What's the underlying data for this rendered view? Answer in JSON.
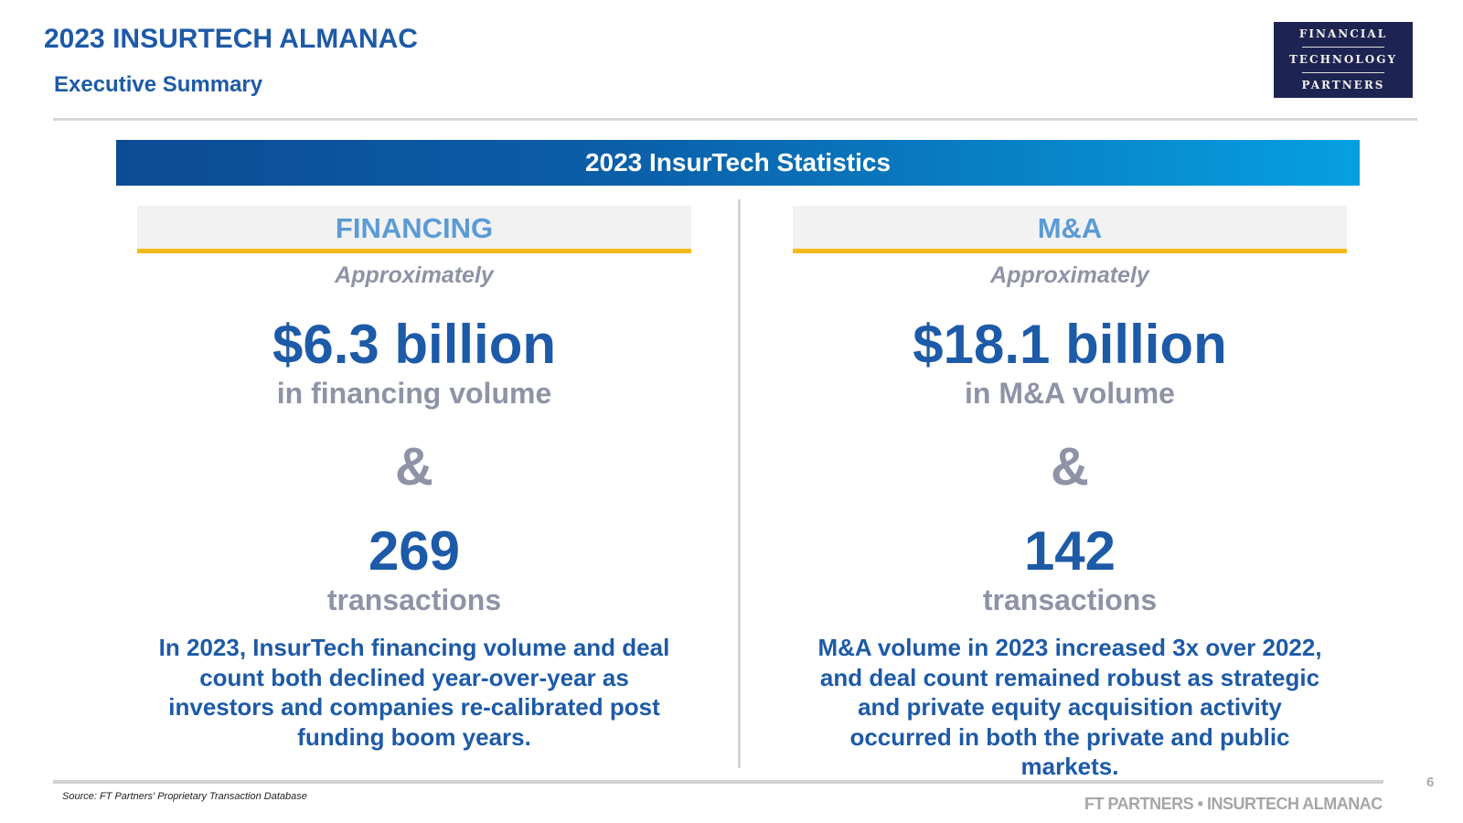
{
  "header": {
    "title": "2023 INSURTECH ALMANAC",
    "subtitle": "Executive Summary",
    "logo": [
      "FINANCIAL",
      "TECHNOLOGY",
      "PARTNERS"
    ]
  },
  "banner": "2023 InsurTech Statistics",
  "financing": {
    "heading": "FINANCING",
    "approx": "Approximately",
    "volume": "$6.3 billion",
    "volume_label": "in financing volume",
    "amp": "&",
    "count": "269",
    "count_label": "transactions",
    "description": "In 2023, InsurTech financing volume and deal count both declined year-over-year as investors and companies re-calibrated post funding boom years."
  },
  "ma": {
    "heading": "M&A",
    "approx": "Approximately",
    "volume": "$18.1 billion",
    "volume_label": "in M&A volume",
    "amp": "&",
    "count": "142",
    "count_label": "transactions",
    "description": "M&A volume in 2023 increased 3x over 2022, and deal count remained robust as strategic and private equity acquisition activity occurred in both the private and public markets."
  },
  "footer": {
    "source": "Source: FT Partners' Proprietary Transaction Database",
    "brand": "FT PARTNERS • INSURTECH ALMANAC",
    "page": "6"
  },
  "colors": {
    "primary": "#1d5aa8",
    "accent": "#f5b91a",
    "muted": "#8e93a6",
    "logo_bg": "#1e2452"
  }
}
